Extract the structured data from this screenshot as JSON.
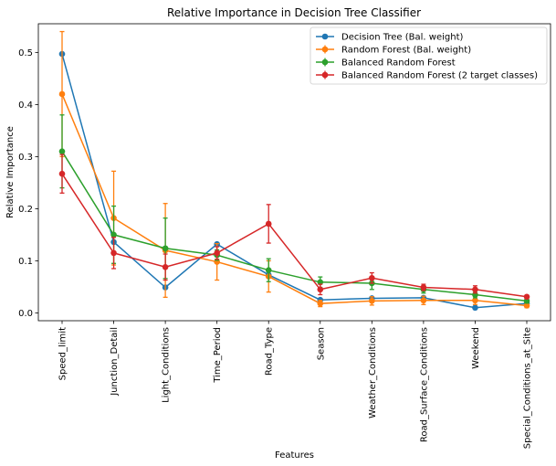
{
  "chart_data": {
    "type": "line",
    "title": "Relative Importance in Decision Tree Classifier",
    "xlabel": "Features",
    "ylabel": "Relative Importance",
    "ylim": [
      -0.015,
      0.555
    ],
    "yticks": [
      0.0,
      0.1,
      0.2,
      0.3,
      0.4,
      0.5
    ],
    "ytick_labels": [
      "0.0",
      "0.1",
      "0.2",
      "0.3",
      "0.4",
      "0.5"
    ],
    "grid": false,
    "legend_position": "top-right",
    "categories": [
      "Speed_limit",
      "Junction_Detail",
      "Light_Conditions",
      "Time_Period",
      "Road_Type",
      "Season",
      "Weather_Conditions",
      "Road_Surface_Conditions",
      "Weekend",
      "Special_Conditions_at_Site"
    ],
    "series": [
      {
        "name": "Decision Tree (Bal. weight)",
        "color": "#1f77b4",
        "values": [
          0.497,
          0.136,
          0.049,
          0.132,
          0.073,
          0.025,
          0.028,
          0.029,
          0.01,
          0.018
        ],
        "errors": null
      },
      {
        "name": "Random Forest (Bal. weight)",
        "color": "#ff7f0e",
        "values": [
          0.42,
          0.182,
          0.12,
          0.098,
          0.07,
          0.018,
          0.023,
          0.024,
          0.024,
          0.014
        ],
        "errors": [
          0.12,
          0.09,
          0.09,
          0.035,
          0.03,
          0.006,
          0.008,
          0.008,
          0.008,
          0.004
        ]
      },
      {
        "name": "Balanced Random Forest",
        "color": "#2ca02c",
        "values": [
          0.31,
          0.15,
          0.124,
          0.111,
          0.082,
          0.059,
          0.057,
          0.045,
          0.035,
          0.023
        ],
        "errors": [
          0.07,
          0.055,
          0.058,
          0.01,
          0.022,
          0.01,
          0.012,
          0.007,
          0.006,
          0.004
        ]
      },
      {
        "name": "Balanced Random Forest (2 target classes)",
        "color": "#d62728",
        "values": [
          0.267,
          0.115,
          0.088,
          0.115,
          0.171,
          0.045,
          0.067,
          0.049,
          0.045,
          0.031
        ],
        "errors": [
          0.037,
          0.03,
          0.025,
          0.012,
          0.037,
          0.01,
          0.01,
          0.006,
          0.007,
          0.003
        ]
      }
    ]
  }
}
